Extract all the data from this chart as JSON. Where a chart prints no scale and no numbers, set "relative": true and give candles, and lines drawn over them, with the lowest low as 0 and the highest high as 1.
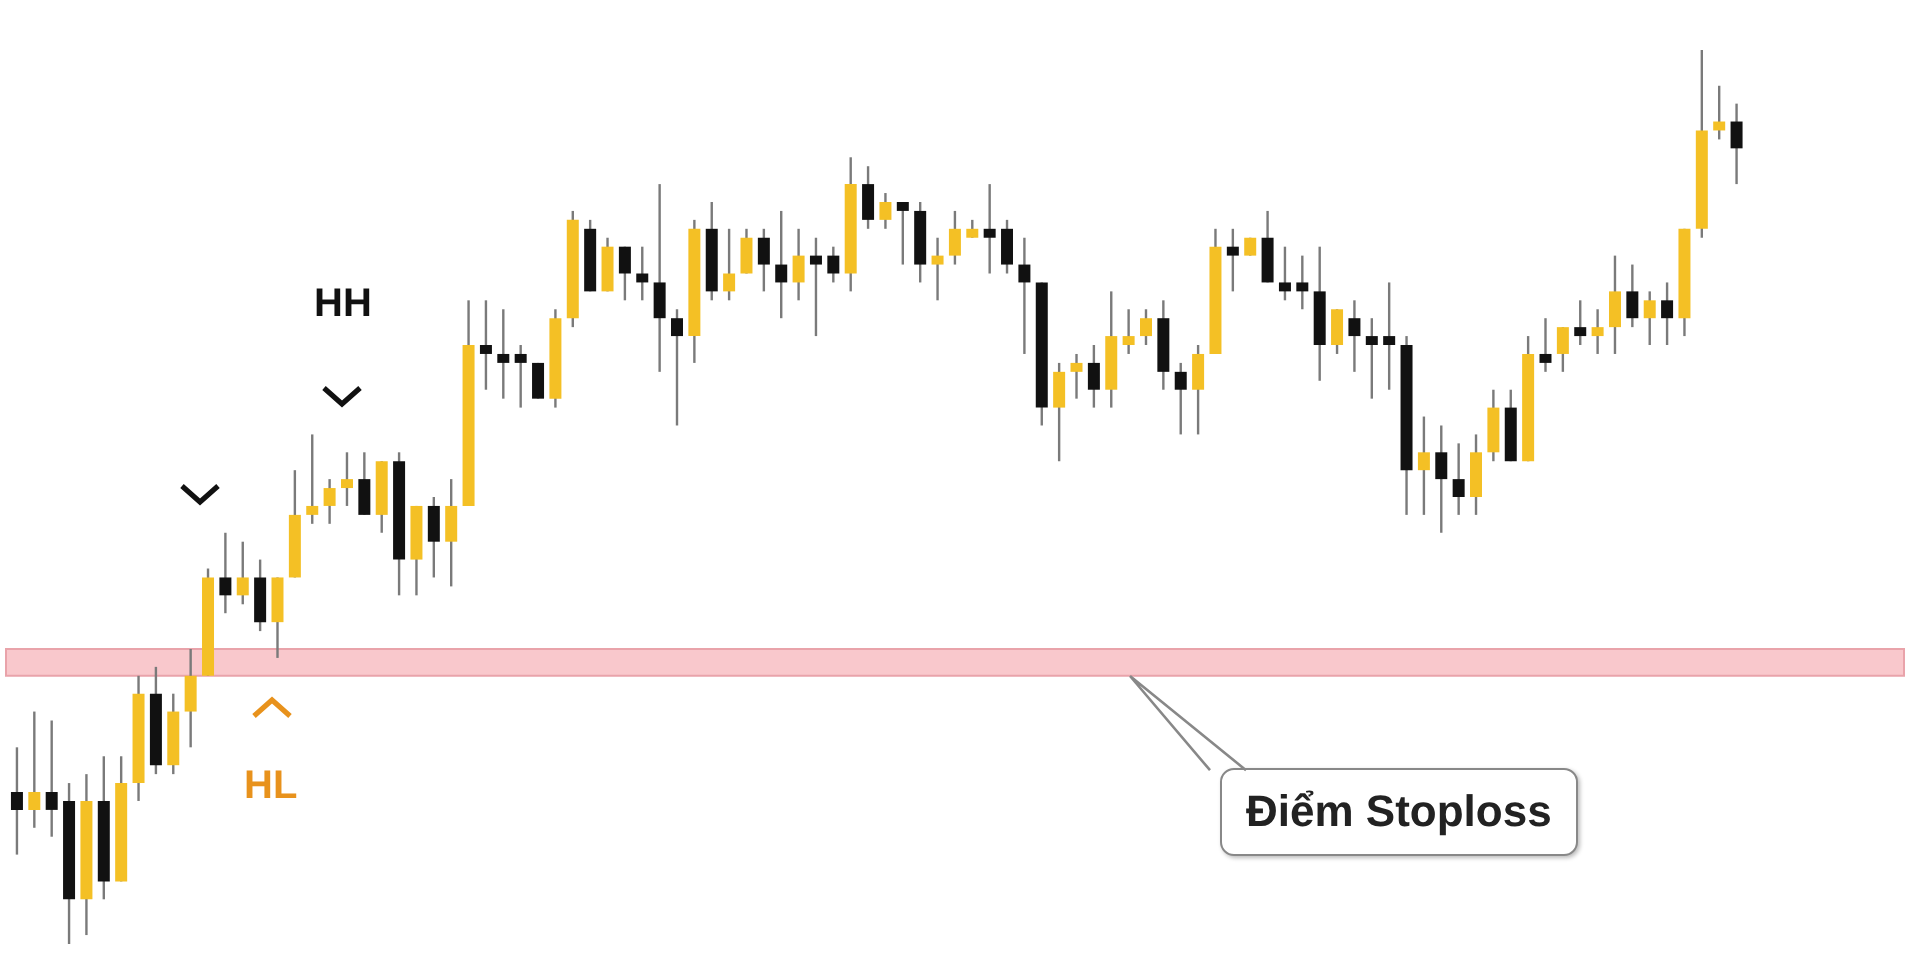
{
  "chart_data": {
    "type": "candlestick",
    "relative": true,
    "categories": [
      null,
      null,
      null,
      null,
      null,
      null,
      null,
      null,
      null,
      null,
      null,
      null,
      null,
      null,
      null,
      null,
      null,
      null,
      null,
      null,
      null,
      null,
      null,
      null,
      null,
      null,
      null,
      null,
      null,
      null,
      null,
      null,
      null,
      null,
      null,
      null,
      null,
      null,
      null,
      null,
      null,
      null,
      null,
      null,
      null,
      null,
      null,
      null,
      null,
      null,
      null,
      null,
      null,
      null,
      null,
      null,
      null,
      null,
      null,
      null,
      null,
      null,
      null,
      null,
      null,
      null,
      null,
      null,
      null,
      null,
      null,
      null,
      null,
      null,
      null,
      null,
      null,
      null,
      null,
      null,
      null,
      null,
      null,
      null,
      null,
      null,
      null,
      null,
      null,
      null,
      null,
      null,
      null,
      null,
      null,
      null,
      null,
      null,
      null,
      null
    ],
    "ohlc": [
      [
        0.17,
        0.22,
        0.1,
        0.15
      ],
      [
        0.15,
        0.26,
        0.13,
        0.17
      ],
      [
        0.17,
        0.25,
        0.12,
        0.15
      ],
      [
        0.16,
        0.18,
        0,
        0.05
      ],
      [
        0.05,
        0.19,
        0.01,
        0.16
      ],
      [
        0.16,
        0.21,
        0.05,
        0.07
      ],
      [
        0.07,
        0.21,
        0.07,
        0.18
      ],
      [
        0.18,
        0.3,
        0.16,
        0.28
      ],
      [
        0.28,
        0.31,
        0.19,
        0.2
      ],
      [
        0.2,
        0.28,
        0.19,
        0.26
      ],
      [
        0.26,
        0.33,
        0.22,
        0.3
      ],
      [
        0.3,
        0.42,
        0.3,
        0.41
      ],
      [
        0.41,
        0.46,
        0.37,
        0.39
      ],
      [
        0.39,
        0.45,
        0.38,
        0.41
      ],
      [
        0.41,
        0.43,
        0.35,
        0.36
      ],
      [
        0.36,
        0.41,
        0.32,
        0.41
      ],
      [
        0.41,
        0.53,
        0.41,
        0.48
      ],
      [
        0.48,
        0.57,
        0.47,
        0.49
      ],
      [
        0.49,
        0.52,
        0.47,
        0.51
      ],
      [
        0.51,
        0.55,
        0.49,
        0.52
      ],
      [
        0.52,
        0.55,
        0.48,
        0.48
      ],
      [
        0.48,
        0.54,
        0.46,
        0.54
      ],
      [
        0.54,
        0.55,
        0.39,
        0.43
      ],
      [
        0.43,
        0.49,
        0.39,
        0.49
      ],
      [
        0.49,
        0.5,
        0.41,
        0.45
      ],
      [
        0.45,
        0.52,
        0.4,
        0.49
      ],
      [
        0.49,
        0.72,
        0.49,
        0.67
      ],
      [
        0.67,
        0.72,
        0.62,
        0.66
      ],
      [
        0.66,
        0.71,
        0.61,
        0.65
      ],
      [
        0.66,
        0.67,
        0.6,
        0.65
      ],
      [
        0.65,
        0.65,
        0.61,
        0.61
      ],
      [
        0.61,
        0.71,
        0.6,
        0.7
      ],
      [
        0.7,
        0.82,
        0.69,
        0.81
      ],
      [
        0.8,
        0.81,
        0.73,
        0.73
      ],
      [
        0.73,
        0.79,
        0.73,
        0.78
      ],
      [
        0.78,
        0.78,
        0.72,
        0.75
      ],
      [
        0.75,
        0.78,
        0.72,
        0.74
      ],
      [
        0.74,
        0.85,
        0.64,
        0.7
      ],
      [
        0.7,
        0.71,
        0.58,
        0.68
      ],
      [
        0.68,
        0.81,
        0.65,
        0.8
      ],
      [
        0.8,
        0.83,
        0.72,
        0.73
      ],
      [
        0.73,
        0.8,
        0.72,
        0.75
      ],
      [
        0.75,
        0.8,
        0.75,
        0.79
      ],
      [
        0.79,
        0.8,
        0.73,
        0.76
      ],
      [
        0.76,
        0.82,
        0.7,
        0.74
      ],
      [
        0.74,
        0.8,
        0.72,
        0.77
      ],
      [
        0.77,
        0.79,
        0.68,
        0.76
      ],
      [
        0.77,
        0.78,
        0.74,
        0.75
      ],
      [
        0.75,
        0.88,
        0.73,
        0.85
      ],
      [
        0.85,
        0.87,
        0.8,
        0.81
      ],
      [
        0.81,
        0.84,
        0.8,
        0.83
      ],
      [
        0.83,
        0.83,
        0.76,
        0.82
      ],
      [
        0.82,
        0.83,
        0.74,
        0.76
      ],
      [
        0.76,
        0.79,
        0.72,
        0.77
      ],
      [
        0.77,
        0.82,
        0.76,
        0.8
      ],
      [
        0.79,
        0.81,
        0.79,
        0.8
      ],
      [
        0.8,
        0.85,
        0.75,
        0.79
      ],
      [
        0.8,
        0.81,
        0.75,
        0.76
      ],
      [
        0.76,
        0.79,
        0.66,
        0.74
      ],
      [
        0.74,
        0.74,
        0.58,
        0.6
      ],
      [
        0.6,
        0.65,
        0.54,
        0.64
      ],
      [
        0.64,
        0.66,
        0.61,
        0.65
      ],
      [
        0.65,
        0.67,
        0.6,
        0.62
      ],
      [
        0.62,
        0.73,
        0.6,
        0.68
      ],
      [
        0.67,
        0.71,
        0.66,
        0.68
      ],
      [
        0.68,
        0.71,
        0.67,
        0.7
      ],
      [
        0.7,
        0.72,
        0.62,
        0.64
      ],
      [
        0.64,
        0.65,
        0.57,
        0.62
      ],
      [
        0.62,
        0.67,
        0.57,
        0.66
      ],
      [
        0.66,
        0.8,
        0.66,
        0.78
      ],
      [
        0.78,
        0.8,
        0.73,
        0.77
      ],
      [
        0.77,
        0.79,
        0.77,
        0.79
      ],
      [
        0.79,
        0.82,
        0.74,
        0.74
      ],
      [
        0.74,
        0.78,
        0.72,
        0.73
      ],
      [
        0.74,
        0.77,
        0.71,
        0.73
      ],
      [
        0.73,
        0.78,
        0.63,
        0.67
      ],
      [
        0.67,
        0.71,
        0.66,
        0.71
      ],
      [
        0.7,
        0.72,
        0.64,
        0.68
      ],
      [
        0.68,
        0.7,
        0.61,
        0.67
      ],
      [
        0.68,
        0.74,
        0.62,
        0.67
      ],
      [
        0.67,
        0.68,
        0.48,
        0.53
      ],
      [
        0.53,
        0.59,
        0.48,
        0.55
      ],
      [
        0.55,
        0.58,
        0.46,
        0.52
      ],
      [
        0.52,
        0.56,
        0.48,
        0.5
      ],
      [
        0.5,
        0.57,
        0.48,
        0.55
      ],
      [
        0.55,
        0.62,
        0.54,
        0.6
      ],
      [
        0.6,
        0.62,
        0.54,
        0.54
      ],
      [
        0.54,
        0.68,
        0.54,
        0.66
      ],
      [
        0.66,
        0.7,
        0.64,
        0.65
      ],
      [
        0.66,
        0.69,
        0.64,
        0.69
      ],
      [
        0.69,
        0.72,
        0.67,
        0.68
      ],
      [
        0.68,
        0.71,
        0.66,
        0.69
      ],
      [
        0.69,
        0.77,
        0.66,
        0.73
      ],
      [
        0.73,
        0.76,
        0.69,
        0.7
      ],
      [
        0.7,
        0.73,
        0.67,
        0.72
      ],
      [
        0.72,
        0.74,
        0.67,
        0.7
      ],
      [
        0.7,
        0.8,
        0.68,
        0.8
      ],
      [
        0.8,
        1,
        0.79,
        0.91
      ],
      [
        0.91,
        0.96,
        0.9,
        0.92
      ],
      [
        0.92,
        0.94,
        0.85,
        0.89
      ]
    ],
    "colors": [
      "#111111",
      "#f4c025",
      "#111111",
      "#111111",
      "#f4c025",
      "#111111",
      "#f4c025",
      "#f4c025",
      "#111111",
      "#f4c025",
      "#f4c025",
      "#f4c025",
      "#111111",
      "#f4c025",
      "#111111",
      "#f4c025",
      "#f4c025",
      "#f4c025",
      "#f4c025",
      "#f4c025",
      "#111111",
      "#f4c025",
      "#111111",
      "#f4c025",
      "#111111",
      "#f4c025",
      "#f4c025",
      "#111111",
      "#111111",
      "#111111",
      "#111111",
      "#f4c025",
      "#f4c025",
      "#111111",
      "#f4c025",
      "#111111",
      "#111111",
      "#111111",
      "#111111",
      "#f4c025",
      "#111111",
      "#f4c025",
      "#f4c025",
      "#111111",
      "#111111",
      "#f4c025",
      "#111111",
      "#111111",
      "#f4c025",
      "#111111",
      "#f4c025",
      "#111111",
      "#111111",
      "#f4c025",
      "#f4c025",
      "#f4c025",
      "#111111",
      "#111111",
      "#111111",
      "#111111",
      "#f4c025",
      "#f4c025",
      "#111111",
      "#f4c025",
      "#f4c025",
      "#f4c025",
      "#111111",
      "#111111",
      "#f4c025",
      "#f4c025",
      "#111111",
      "#f4c025",
      "#111111",
      "#111111",
      "#111111",
      "#111111",
      "#f4c025",
      "#111111",
      "#111111",
      "#111111",
      "#111111",
      "#f4c025",
      "#111111",
      "#111111",
      "#f4c025",
      "#f4c025",
      "#111111",
      "#f4c025",
      "#111111",
      "#f4c025",
      "#111111",
      "#f4c025",
      "#f4c025",
      "#111111",
      "#f4c025",
      "#111111",
      "#f4c025",
      "#f4c025",
      "#f4c025",
      "#111111"
    ],
    "bands": [
      {
        "axis": "y",
        "from": 0.3,
        "to": 0.33,
        "label": "Điểm Stoploss",
        "color": "#f9c8cc"
      }
    ],
    "annotations": [
      "HH",
      "HL"
    ]
  }
}
